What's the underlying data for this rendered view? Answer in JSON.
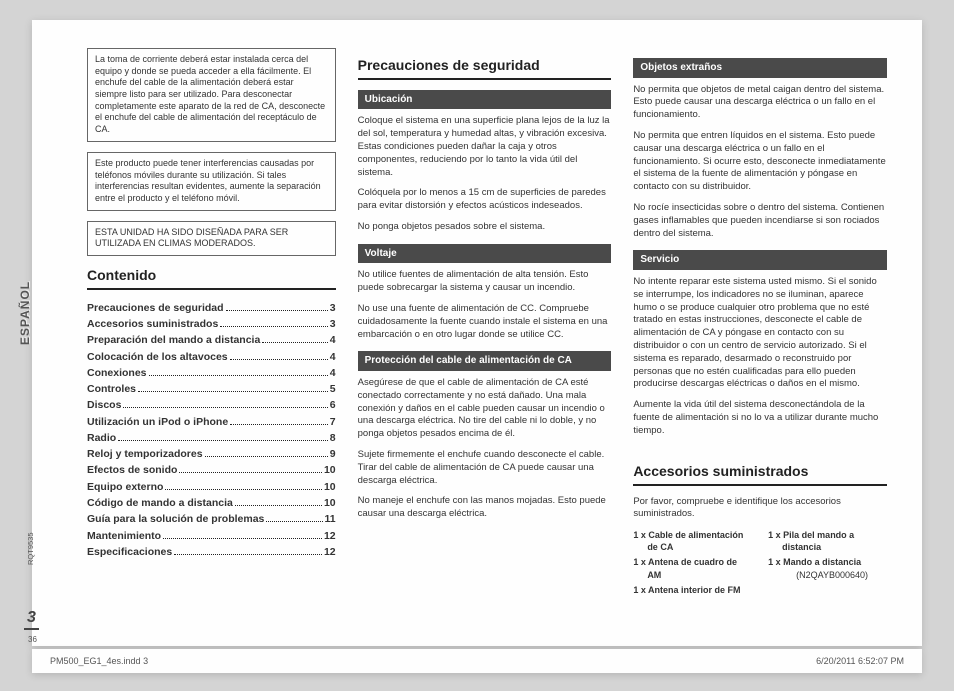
{
  "side": {
    "lang": "ESPAÑOL",
    "pagenum": "3",
    "smallnum": "36",
    "rqt": "RQT9535"
  },
  "footer": {
    "left": "PM500_EG1_4es.indd   3",
    "right": "6/20/2011   6:52:07 PM"
  },
  "boxes": [
    "La toma de corriente deberá estar instalada cerca del equipo y donde se pueda acceder a ella fácilmente. El enchufe del cable de la alimentación deberá estar siempre listo para ser utilizado.\nPara desconectar completamente este aparato de la red de CA, desconecte el enchufe del cable de alimentación del receptáculo de CA.",
    "Este producto puede tener interferencias causadas por teléfonos móviles durante su utilización. Si tales interferencias resultan evidentes, aumente la separación entre el producto y el teléfono móvil.",
    "ESTA UNIDAD HA SIDO DISEÑADA PARA SER UTILIZADA EN CLIMAS MODERADOS."
  ],
  "contenido": {
    "title": "Contenido",
    "items": [
      {
        "t": "Precauciones de seguridad",
        "p": "3"
      },
      {
        "t": "Accesorios suministrados",
        "p": "3"
      },
      {
        "t": "Preparación del mando a distancia",
        "p": "4"
      },
      {
        "t": "Colocación de los altavoces",
        "p": "4"
      },
      {
        "t": "Conexiones",
        "p": "4"
      },
      {
        "t": "Controles",
        "p": "5"
      },
      {
        "t": "Discos",
        "p": "6"
      },
      {
        "t": "Utilización un iPod o iPhone",
        "p": "7"
      },
      {
        "t": "Radio",
        "p": "8"
      },
      {
        "t": "Reloj y temporizadores",
        "p": "9"
      },
      {
        "t": "Efectos de sonido",
        "p": "10"
      },
      {
        "t": "Equipo externo",
        "p": "10"
      },
      {
        "t": "Código de mando a distancia",
        "p": "10"
      },
      {
        "t": "Guía para la solución de problemas",
        "p": "11"
      },
      {
        "t": "Mantenimiento",
        "p": "12"
      },
      {
        "t": "Especificaciones",
        "p": "12"
      }
    ]
  },
  "col2": {
    "title": "Precauciones de seguridad",
    "sections": [
      {
        "h": "Ubicación",
        "paras": [
          "Coloque el sistema en una superficie plana lejos de la luz la del sol, temperatura y humedad altas, y vibración excesiva. Estas condiciones pueden dañar la caja y otros componentes, reduciendo por lo tanto la vida útil del sistema.",
          "Colóquela por lo menos a 15 cm de superficies de paredes para evitar distorsión y efectos acústicos indeseados.",
          "No ponga objetos pesados sobre el sistema."
        ]
      },
      {
        "h": "Voltaje",
        "paras": [
          "No utilice fuentes de alimentación de alta tensión. Esto puede sobrecargar la sistema y causar un incendio.",
          "No use una fuente de alimentación de CC. Compruebe cuidadosamente la fuente cuando instale el sistema en una embarcación o en otro lugar donde se utilice CC."
        ]
      },
      {
        "h": "Protección del cable de alimentación de CA",
        "paras": [
          "Asegúrese de que el cable de alimentación de CA esté conectado correctamente y no está dañado. Una mala conexión y daños en el cable pueden causar un incendio o una descarga eléctrica. No tire del cable ni lo doble, y no ponga objetos pesados encima de él.",
          "Sujete firmemente el enchufe cuando desconecte el cable. Tirar del cable de alimentación de CA puede causar una descarga eléctrica.",
          "No maneje el enchufe con las manos mojadas. Esto puede causar una descarga eléctrica."
        ]
      }
    ]
  },
  "col3": {
    "sections": [
      {
        "h": "Objetos extraños",
        "paras": [
          "No permita que objetos de metal caigan dentro del sistema. Esto puede causar una descarga eléctrica o un fallo en el funcionamiento.",
          "No permita que entren líquidos en el sistema. Esto puede causar una descarga eléctrica o un fallo en el funcionamiento. Si ocurre esto, desconecte inmediatamente el sistema de la fuente de alimentación y póngase en contacto con su distribuidor.",
          "No rocíe insecticidas sobre o dentro del sistema. Contienen gases inflamables que pueden incendiarse si son rociados dentro del sistema."
        ]
      },
      {
        "h": "Servicio",
        "paras": [
          "No intente reparar este sistema usted mismo. Si el sonido se interrumpe, los indicadores no se iluminan, aparece humo o se produce cualquier otro problema que no esté tratado en estas instrucciones, desconecte el cable de alimentación de CA y póngase en contacto con su distribuidor o con un centro de servicio autorizado. Si el sistema es reparado, desarmado o reconstruido por personas que no estén cualificadas para ello pueden producirse descargas eléctricas o daños en el mismo.",
          "Aumente la vida útil del sistema desconectándola de la fuente de alimentación si no lo va a utilizar durante mucho tiempo."
        ]
      }
    ],
    "acc": {
      "title": "Accesorios suministrados",
      "intro": "Por favor, compruebe e identifique los accesorios suministrados.",
      "left": [
        "1 x Cable de alimentación de CA",
        "1 x Antena de cuadro de AM",
        "1 x Antena interior de FM"
      ],
      "right": [
        {
          "t": "1 x Pila del mando a distancia",
          "s": ""
        },
        {
          "t": "1 x Mando a distancia",
          "s": "(N2QAYB000640)"
        }
      ]
    }
  }
}
